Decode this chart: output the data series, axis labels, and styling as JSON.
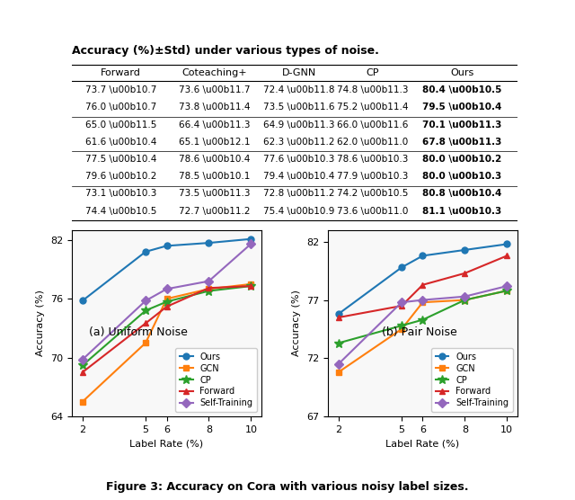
{
  "table": {
    "title": "Accuracy (%)\\u00b1Std) under various types of noise.",
    "headers": [
      "Forward",
      "Coteaching+",
      "D-GNN",
      "CP",
      "Ours"
    ],
    "rows": [
      [
        "73.7 \\u00b10.7",
        "73.6 \\u00b11.7",
        "72.4 \\u00b11.8",
        "74.8 \\u00b11.3",
        "80.4 \\u00b10.5"
      ],
      [
        "76.0 \\u00b10.7",
        "73.8 \\u00b11.4",
        "73.5 \\u00b11.6",
        "75.2 \\u00b11.4",
        "79.5 \\u00b10.4"
      ],
      [
        "65.0 \\u00b11.5",
        "66.4 \\u00b11.3",
        "64.9 \\u00b11.3",
        "66.0 \\u00b11.6",
        "70.1 \\u00b11.3"
      ],
      [
        "61.6 \\u00b10.4",
        "65.1 \\u00b12.1",
        "62.3 \\u00b11.2",
        "62.0 \\u00b11.0",
        "67.8 \\u00b11.3"
      ],
      [
        "77.5 \\u00b10.4",
        "78.6 \\u00b10.4",
        "77.6 \\u00b10.3",
        "78.6 \\u00b10.3",
        "80.0 \\u00b10.2"
      ],
      [
        "79.6 \\u00b10.2",
        "78.5 \\u00b10.1",
        "79.4 \\u00b10.4",
        "77.9 \\u00b10.3",
        "80.0 \\u00b10.3"
      ],
      [
        "73.1 \\u00b10.3",
        "73.5 \\u00b11.3",
        "72.8 \\u00b11.2",
        "74.2 \\u00b10.5",
        "80.8 \\u00b10.4"
      ],
      [
        "74.4 \\u00b10.5",
        "72.7 \\u00b11.2",
        "75.4 \\u00b10.9",
        "73.6 \\u00b11.0",
        "81.1 \\u00b10.3"
      ]
    ],
    "row_groups": [
      2,
      2,
      2,
      2
    ]
  },
  "plot_left": {
    "title": "(a) Uniform Noise",
    "xlabel": "Label Rate (%)",
    "ylabel": "Accuracy (%)",
    "x": [
      2,
      5,
      6,
      8,
      10
    ],
    "ylim": [
      64,
      83
    ],
    "yticks": [
      64,
      70,
      76,
      82
    ],
    "series": {
      "Ours": {
        "y": [
          75.8,
          80.8,
          81.4,
          81.7,
          82.1
        ],
        "color": "#1f77b4",
        "marker": "o"
      },
      "GCN": {
        "y": [
          65.5,
          71.5,
          76.0,
          77.0,
          77.5
        ],
        "color": "#ff7f0e",
        "marker": "s"
      },
      "CP": {
        "y": [
          69.2,
          74.8,
          75.7,
          76.8,
          77.3
        ],
        "color": "#2ca02c",
        "marker": "*"
      },
      "Forward": {
        "y": [
          68.5,
          73.5,
          75.2,
          77.1,
          77.3
        ],
        "color": "#d62728",
        "marker": "^"
      },
      "Self-Training": {
        "y": [
          69.8,
          75.8,
          77.0,
          77.8,
          81.6
        ],
        "color": "#9467bd",
        "marker": "D"
      }
    }
  },
  "plot_right": {
    "title": "(b) Pair Noise",
    "xlabel": "Label Rate (%)",
    "ylabel": "Accuracy (%)",
    "x": [
      2,
      5,
      6,
      8,
      10
    ],
    "ylim": [
      67,
      83
    ],
    "yticks": [
      67,
      72,
      77,
      82
    ],
    "series": {
      "Ours": {
        "y": [
          75.8,
          79.8,
          80.8,
          81.3,
          81.8
        ],
        "color": "#1f77b4",
        "marker": "o"
      },
      "GCN": {
        "y": [
          70.8,
          74.5,
          76.8,
          77.0,
          77.8
        ],
        "color": "#ff7f0e",
        "marker": "s"
      },
      "CP": {
        "y": [
          73.3,
          74.8,
          75.3,
          77.0,
          77.8
        ],
        "color": "#2ca02c",
        "marker": "*"
      },
      "Forward": {
        "y": [
          75.5,
          76.5,
          78.3,
          79.3,
          80.8
        ],
        "color": "#d62728",
        "marker": "^"
      },
      "Self-Training": {
        "y": [
          71.5,
          76.8,
          77.0,
          77.3,
          78.2
        ],
        "color": "#9467bd",
        "marker": "D"
      }
    }
  },
  "figure_caption": "Figure 3: Accuracy on Cora with various noisy label sizes.",
  "background_color": "#ffffff"
}
